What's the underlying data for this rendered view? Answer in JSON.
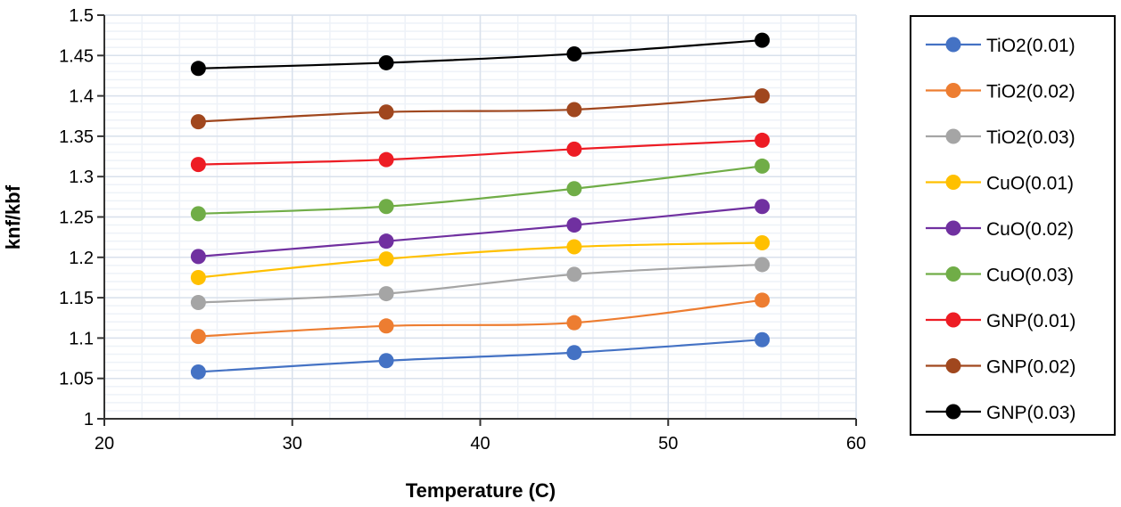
{
  "chart_data": {
    "type": "line",
    "title": "",
    "xlabel": "Temperature (C)",
    "ylabel": "knf/kbf",
    "xlim": [
      20,
      60
    ],
    "ylim": [
      1,
      1.5
    ],
    "xticks": [
      20,
      30,
      40,
      50,
      60
    ],
    "yticks": [
      "1",
      "1.05",
      "1.1",
      "1.15",
      "1.2",
      "1.25",
      "1.3",
      "1.35",
      "1.4",
      "1.45",
      "1.5"
    ],
    "grid": "major and minor",
    "legend_position": "right",
    "x": [
      25,
      35,
      45,
      55
    ],
    "series": [
      {
        "name": "TiO2(0.01)",
        "color": "#4472C4",
        "values": [
          1.058,
          1.072,
          1.082,
          1.098
        ]
      },
      {
        "name": "TiO2(0.02)",
        "color": "#ED7D31",
        "values": [
          1.102,
          1.115,
          1.119,
          1.147
        ]
      },
      {
        "name": "TiO2(0.03)",
        "color": "#A5A5A5",
        "values": [
          1.144,
          1.155,
          1.179,
          1.191
        ]
      },
      {
        "name": "CuO(0.01)",
        "color": "#FFC000",
        "values": [
          1.175,
          1.198,
          1.213,
          1.218
        ]
      },
      {
        "name": "CuO(0.02)",
        "color": "#7030A0",
        "values": [
          1.201,
          1.22,
          1.24,
          1.263
        ]
      },
      {
        "name": "CuO(0.03)",
        "color": "#70AD47",
        "values": [
          1.254,
          1.263,
          1.285,
          1.313
        ]
      },
      {
        "name": "GNP(0.01)",
        "color": "#ED1C24",
        "values": [
          1.315,
          1.321,
          1.334,
          1.345
        ]
      },
      {
        "name": "GNP(0.02)",
        "color": "#A0471E",
        "values": [
          1.368,
          1.38,
          1.383,
          1.4
        ]
      },
      {
        "name": "GNP(0.03)",
        "color": "#000000",
        "values": [
          1.434,
          1.441,
          1.452,
          1.469
        ]
      }
    ]
  }
}
